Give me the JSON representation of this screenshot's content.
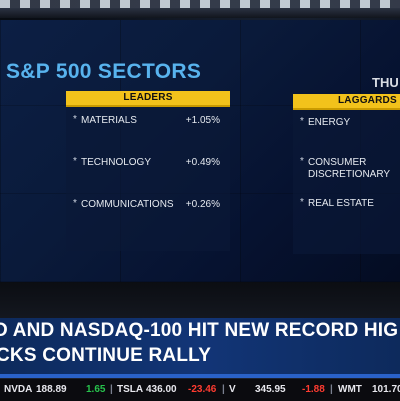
{
  "graphic": {
    "title": "S&P 500 SECTORS",
    "day": "THU",
    "leaders": {
      "header": "LEADERS",
      "rows": [
        {
          "sector": "MATERIALS",
          "change": "+1.05%"
        },
        {
          "sector": "TECHNOLOGY",
          "change": "+0.49%"
        },
        {
          "sector": "COMMUNICATIONS",
          "change": "+0.26%"
        }
      ]
    },
    "laggards": {
      "header": "LAGGARDS",
      "rows": [
        {
          "sector": "ENERGY"
        },
        {
          "sector": "CONSUMER DISCRETIONARY"
        },
        {
          "sector": "REAL ESTATE"
        }
      ]
    },
    "bullet": "*"
  },
  "lower_third": {
    "line1": "D AND NASDAQ-100 HIT NEW RECORD HIG",
    "line2": "CKS CONTINUE RALLY"
  },
  "ticker": {
    "items": [
      {
        "symbol": "NVDA",
        "price": "188.89",
        "change": "1.65",
        "direction": "up"
      },
      {
        "symbol": "TSLA",
        "price": "436.00",
        "change": "-23.46",
        "direction": "down"
      },
      {
        "symbol": "V",
        "price": "345.95",
        "change": "-1.88",
        "direction": "down"
      },
      {
        "symbol": "WMT",
        "price": "101.70",
        "change": "",
        "direction": "none"
      }
    ],
    "separator": "|"
  },
  "colors": {
    "title": "#58b3ee",
    "header_bar": "#f2c21b",
    "lower_third": "#123577",
    "up": "#27c24c",
    "down": "#ff3b30"
  }
}
